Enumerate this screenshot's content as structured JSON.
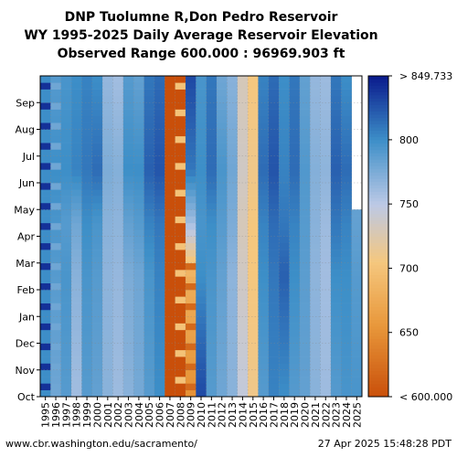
{
  "header": {
    "line1": "DNP Tuolumne R,Don Pedro Reservoir",
    "line2": "WY 1995-2025 Daily Average Reservoir Elevation",
    "line3": "Observed Range 600.000 : 96969.903 ft"
  },
  "footer": {
    "left": "www.cbr.washington.edu/sacramento/",
    "right": "27 Apr 2025 15:48:28 PDT"
  },
  "chart_data": {
    "type": "heatmap",
    "title": "DNP Tuolumne R,Don Pedro Reservoir WY 1995-2025 Daily Average Reservoir Elevation",
    "subtitle": "Observed Range 600.000 : 96969.903 ft",
    "x": [
      "1995",
      "1996",
      "1997",
      "1998",
      "1999",
      "2000",
      "2001",
      "2002",
      "2003",
      "2004",
      "2005",
      "2006",
      "2007",
      "2008",
      "2009",
      "2010",
      "2011",
      "2012",
      "2013",
      "2014",
      "2015",
      "2016",
      "2017",
      "2018",
      "2019",
      "2020",
      "2021",
      "2022",
      "2023",
      "2024",
      "2025"
    ],
    "y_months": [
      "Oct",
      "Nov",
      "Dec",
      "Jan",
      "Feb",
      "Mar",
      "Apr",
      "May",
      "Jun",
      "Jul",
      "Aug",
      "Sep"
    ],
    "colorbar": {
      "range": [
        600,
        849.733
      ],
      "ticks": [
        650,
        700,
        750,
        800
      ],
      "min_label": "< 600.000",
      "max_label": "> 849.733",
      "colors": {
        "low": "#c94f0a",
        "mid_low": "#f5c77e",
        "mid": "#bcc9e6",
        "mid_high": "#3d8fc8",
        "high": "#0a1a8c"
      }
    },
    "missing_after_2025_month": "Apr",
    "years": [
      {
        "year": "1995",
        "pattern": "striped",
        "oct": 800,
        "feb": 800,
        "apr": 800,
        "jun": 800,
        "sep": 800
      },
      {
        "year": "1996",
        "pattern": "striped",
        "oct": 780,
        "feb": 790,
        "apr": 795,
        "jun": 800,
        "sep": 790
      },
      {
        "year": "1997",
        "pattern": "normal",
        "oct": 790,
        "feb": 795,
        "apr": 790,
        "jun": 800,
        "sep": 795
      },
      {
        "year": "1998",
        "pattern": "normal",
        "oct": 760,
        "feb": 770,
        "apr": 780,
        "jun": 805,
        "sep": 800
      },
      {
        "year": "1999",
        "pattern": "normal",
        "oct": 790,
        "feb": 795,
        "apr": 800,
        "jun": 810,
        "sep": 805
      },
      {
        "year": "2000",
        "pattern": "normal",
        "oct": 785,
        "feb": 790,
        "apr": 795,
        "jun": 815,
        "sep": 800
      },
      {
        "year": "2001",
        "pattern": "normal",
        "oct": 770,
        "feb": 768,
        "apr": 770,
        "jun": 775,
        "sep": 765
      },
      {
        "year": "2002",
        "pattern": "normal",
        "oct": 762,
        "feb": 765,
        "apr": 768,
        "jun": 772,
        "sep": 760
      },
      {
        "year": "2003",
        "pattern": "normal",
        "oct": 770,
        "feb": 775,
        "apr": 785,
        "jun": 800,
        "sep": 790
      },
      {
        "year": "2004",
        "pattern": "normal",
        "oct": 778,
        "feb": 780,
        "apr": 790,
        "jun": 800,
        "sep": 785
      },
      {
        "year": "2005",
        "pattern": "normal",
        "oct": 790,
        "feb": 795,
        "apr": 805,
        "jun": 820,
        "sep": 810
      },
      {
        "year": "2006",
        "pattern": "normal",
        "oct": 800,
        "feb": 805,
        "apr": 810,
        "jun": 825,
        "sep": 815
      },
      {
        "year": "2007",
        "pattern": "low",
        "oct": 600,
        "feb": 600,
        "apr": 600,
        "jun": 600,
        "sep": 600
      },
      {
        "year": "2008",
        "pattern": "low",
        "oct": 600,
        "feb": 600,
        "apr": 600,
        "jun": 600,
        "sep": 600
      },
      {
        "year": "2009",
        "pattern": "mixed",
        "oct": 650,
        "feb": 680,
        "apr": 760,
        "jun": 810,
        "sep": 830
      },
      {
        "year": "2010",
        "pattern": "normal",
        "oct": 830,
        "feb": 800,
        "apr": 795,
        "jun": 800,
        "sep": 795
      },
      {
        "year": "2011",
        "pattern": "normal",
        "oct": 790,
        "feb": 795,
        "apr": 800,
        "jun": 815,
        "sep": 810
      },
      {
        "year": "2012",
        "pattern": "normal",
        "oct": 780,
        "feb": 785,
        "apr": 790,
        "jun": 795,
        "sep": 780
      },
      {
        "year": "2013",
        "pattern": "normal",
        "oct": 770,
        "feb": 768,
        "apr": 775,
        "jun": 780,
        "sep": 770
      },
      {
        "year": "2014",
        "pattern": "normal",
        "oct": 745,
        "feb": 735,
        "apr": 730,
        "jun": 735,
        "sep": 730
      },
      {
        "year": "2015",
        "pattern": "normal",
        "oct": 710,
        "feb": 705,
        "apr": 705,
        "jun": 710,
        "sep": 705
      },
      {
        "year": "2016",
        "pattern": "normal",
        "oct": 790,
        "feb": 800,
        "apr": 805,
        "jun": 815,
        "sep": 805
      },
      {
        "year": "2017",
        "pattern": "normal",
        "oct": 805,
        "feb": 810,
        "apr": 815,
        "jun": 825,
        "sep": 815
      },
      {
        "year": "2018",
        "pattern": "normal",
        "oct": 800,
        "feb": 820,
        "apr": 810,
        "jun": 805,
        "sep": 800
      },
      {
        "year": "2019",
        "pattern": "normal",
        "oct": 790,
        "feb": 800,
        "apr": 805,
        "jun": 815,
        "sep": 810
      },
      {
        "year": "2020",
        "pattern": "normal",
        "oct": 785,
        "feb": 788,
        "apr": 790,
        "jun": 792,
        "sep": 785
      },
      {
        "year": "2021",
        "pattern": "normal",
        "oct": 770,
        "feb": 768,
        "apr": 770,
        "jun": 772,
        "sep": 765
      },
      {
        "year": "2022",
        "pattern": "normal",
        "oct": 762,
        "feb": 760,
        "apr": 762,
        "jun": 768,
        "sep": 762
      },
      {
        "year": "2023",
        "pattern": "normal",
        "oct": 790,
        "feb": 800,
        "apr": 810,
        "jun": 820,
        "sep": 810
      },
      {
        "year": "2024",
        "pattern": "normal",
        "oct": 795,
        "feb": 800,
        "apr": 805,
        "jun": 815,
        "sep": 800
      },
      {
        "year": "2025",
        "pattern": "normal",
        "oct": 795,
        "feb": 790,
        "apr": 785,
        "jun": null,
        "sep": null
      }
    ]
  }
}
